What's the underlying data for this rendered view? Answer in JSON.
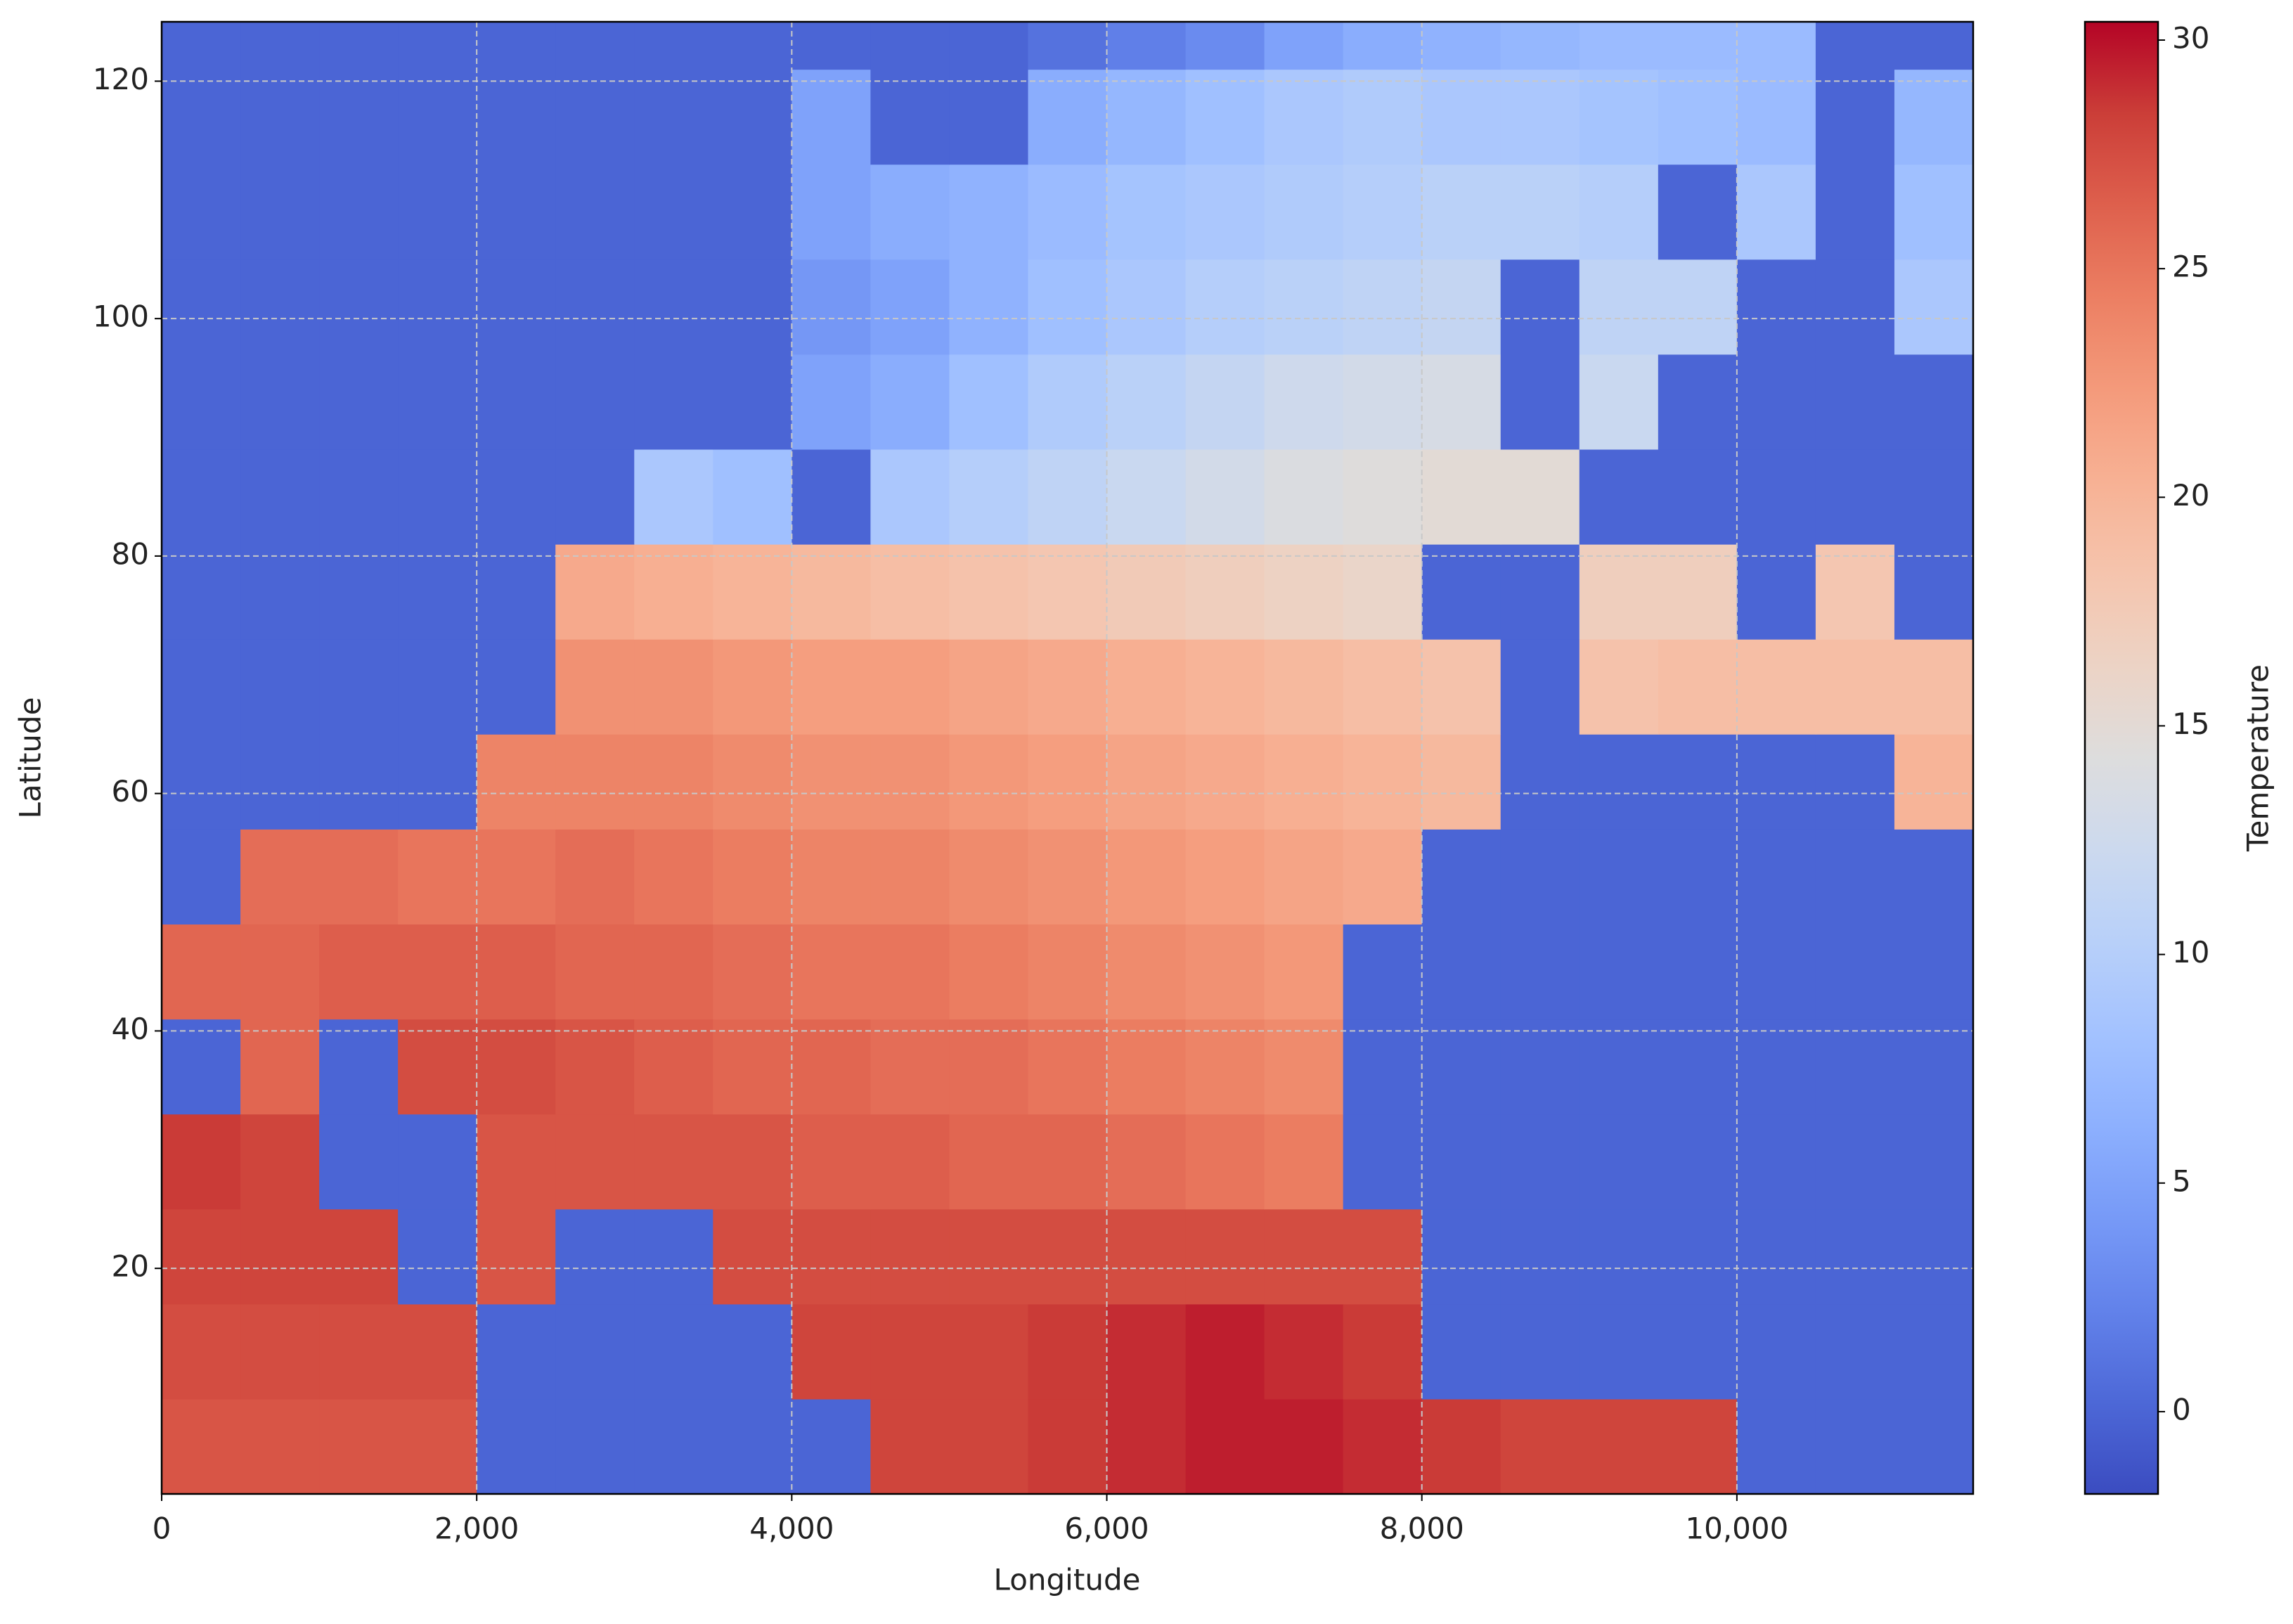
{
  "chart_data": {
    "type": "heatmap",
    "xlabel": "Longitude",
    "ylabel": "Latitude",
    "colorbar_label": "Temperature",
    "colormap": "coolwarm",
    "grid": true,
    "xlim": [
      0,
      11500
    ],
    "ylim": [
      1,
      125
    ],
    "xticks": [
      0,
      {
        "value": 2000,
        "label": "2,000"
      },
      {
        "value": 4000,
        "label": "4,000"
      },
      {
        "value": 6000,
        "label": "6,000"
      },
      {
        "value": 8000,
        "label": "8,000"
      },
      {
        "value": 10000,
        "label": "10,000"
      }
    ],
    "yticks": [
      20,
      40,
      60,
      80,
      100,
      120
    ],
    "zlim": [
      -1.8,
      30.4
    ],
    "zticks": [
      0,
      5,
      10,
      15,
      20,
      25,
      30
    ],
    "xbins": [
      0,
      500,
      1000,
      1500,
      2000,
      2500,
      3000,
      3500,
      4000,
      4500,
      5000,
      5500,
      6000,
      6500,
      7000,
      7500,
      8000,
      8500,
      9000,
      9500,
      10000,
      10500,
      11000,
      11500
    ],
    "ybins": [
      1,
      9,
      17,
      25,
      33,
      41,
      49,
      57,
      65,
      73,
      81,
      89,
      97,
      105,
      113,
      121,
      125
    ],
    "values": [
      [
        27,
        27,
        27,
        27,
        0,
        0,
        0,
        0,
        0,
        28,
        28,
        28.5,
        29,
        29.5,
        29.5,
        29,
        28.5,
        28,
        28,
        28,
        0,
        0,
        0
      ],
      [
        27.5,
        27.5,
        27.5,
        27.5,
        0,
        0,
        0,
        0,
        28,
        28,
        28,
        28.5,
        29,
        29.5,
        29,
        28.5,
        0,
        0,
        0,
        0,
        0,
        0,
        0
      ],
      [
        28,
        28,
        28,
        0,
        27,
        0,
        0,
        27.5,
        27.5,
        27.5,
        27.5,
        27.5,
        27.5,
        27.5,
        27.5,
        27.5,
        0,
        0,
        0,
        0,
        0,
        0,
        0
      ],
      [
        28.5,
        28,
        0,
        0,
        27,
        27,
        27,
        27,
        26.5,
        26.5,
        26,
        26,
        25.5,
        25,
        24.5,
        0,
        0,
        0,
        0,
        0,
        0,
        0,
        0
      ],
      [
        0,
        26,
        0,
        27.5,
        27.5,
        27,
        26.5,
        26,
        26,
        25.5,
        25.5,
        25,
        24.5,
        24,
        23.5,
        0,
        0,
        0,
        0,
        0,
        0,
        0,
        0
      ],
      [
        26,
        26,
        26.5,
        26.5,
        26.5,
        26,
        26,
        25.5,
        25,
        25,
        24.5,
        24,
        23.5,
        23,
        22.5,
        0,
        0,
        0,
        0,
        0,
        0,
        0,
        0
      ],
      [
        0,
        25.5,
        25.5,
        25,
        25,
        25.5,
        25,
        24.5,
        24,
        24,
        23.5,
        23,
        22.5,
        22,
        21.5,
        21,
        0,
        0,
        0,
        0,
        0,
        0,
        0
      ],
      [
        0,
        0,
        0,
        0,
        24,
        24,
        24,
        23.5,
        23,
        23,
        22.5,
        22,
        21.5,
        21,
        20.5,
        20,
        19.5,
        0,
        0,
        0,
        0,
        0,
        20
      ],
      [
        0,
        0,
        0,
        0,
        0,
        23,
        23,
        22.5,
        22,
        22,
        21.5,
        21,
        20.5,
        20,
        19.5,
        19,
        18.5,
        0,
        18.5,
        19,
        19,
        19,
        19
      ],
      [
        0,
        0,
        0,
        0,
        0,
        21,
        20.5,
        20,
        19.5,
        19,
        18.5,
        18,
        17.5,
        17,
        16.5,
        16,
        0,
        0,
        17,
        17,
        0,
        18,
        0
      ],
      [
        0,
        0,
        0,
        0,
        0,
        0,
        9,
        8,
        0,
        9,
        10,
        11,
        12,
        13,
        14,
        14.5,
        15,
        15,
        0,
        0,
        0,
        0,
        0
      ],
      [
        0,
        0,
        0,
        0,
        0,
        0,
        0,
        0,
        5,
        6,
        8,
        9.5,
        10.5,
        11.5,
        12.5,
        13,
        13.5,
        0,
        12,
        0,
        0,
        0,
        0
      ],
      [
        0,
        0,
        0,
        0,
        0,
        0,
        0,
        0,
        4,
        5,
        6.5,
        8,
        9,
        10,
        10.5,
        11,
        11.5,
        0,
        11,
        11,
        0,
        0,
        9
      ],
      [
        0,
        0,
        0,
        0,
        0,
        0,
        0,
        0,
        5,
        6,
        6.5,
        7.5,
        8.5,
        9,
        9.5,
        10,
        10.5,
        10.5,
        10,
        0,
        9,
        0,
        8
      ],
      [
        0,
        0,
        0,
        0,
        0,
        0,
        0,
        0,
        5,
        0,
        0,
        6,
        7,
        8,
        9,
        9.5,
        9,
        9,
        8.5,
        8,
        7.5,
        0,
        7
      ],
      [
        0,
        0,
        0,
        0,
        0,
        0,
        0,
        0,
        0,
        0,
        0,
        1,
        2,
        3,
        5,
        6,
        6.5,
        7,
        7.5,
        7.5,
        7.5,
        0,
        0
      ]
    ]
  }
}
